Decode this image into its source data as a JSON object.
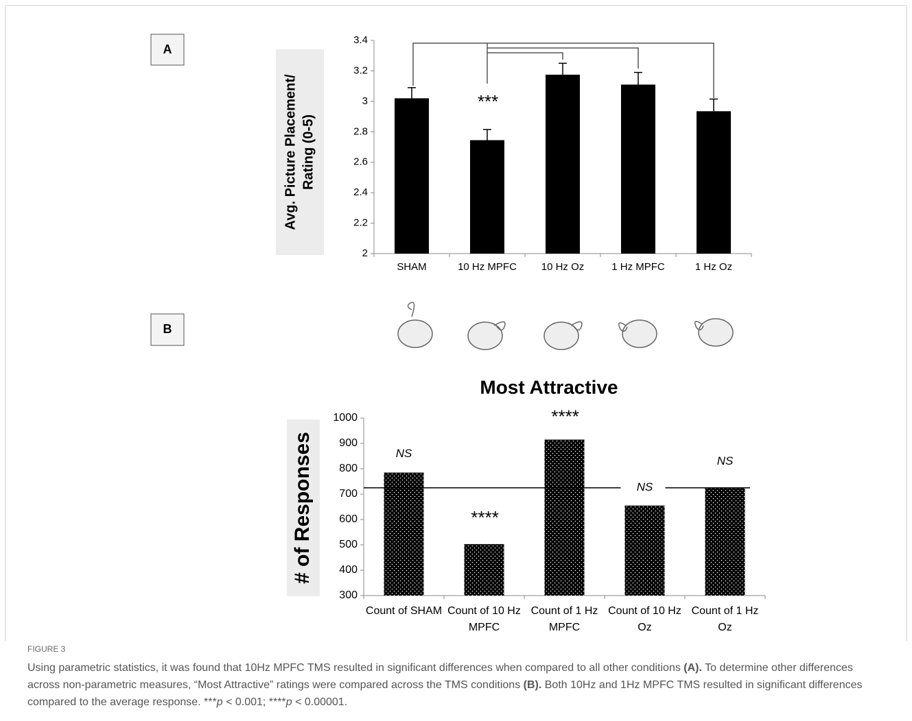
{
  "figure": {
    "panels": [
      "A",
      "B"
    ],
    "label": "FIGURE 3",
    "caption": [
      {
        "text": "Using parametric statistics, it was found that 10Hz MPFC TMS resulted in significant differences when compared to all other conditions "
      },
      {
        "text": "(A).",
        "bold": true
      },
      {
        "text": " To determine other differences across non-parametric measures, “Most Attractive” ratings were compared across the TMS conditions "
      },
      {
        "text": "(B).",
        "bold": true
      },
      {
        "text": " Both 10Hz and 1Hz MPFC TMS resulted in significant differences compared to the average response. ***"
      },
      {
        "text": "p",
        "italic": true
      },
      {
        "text": " < 0.001; ****"
      },
      {
        "text": "p",
        "italic": true
      },
      {
        "text": " < 0.00001."
      }
    ]
  },
  "chart_data": [
    {
      "type": "bar",
      "ylabel": [
        "Avg. Picture Placement/",
        "Rating (0-5)"
      ],
      "categories": [
        "SHAM",
        "10 Hz MPFC",
        "10 Hz Oz",
        "1 Hz MPFC",
        "1 Hz Oz"
      ],
      "values": [
        3.02,
        2.745,
        3.175,
        3.11,
        2.935
      ],
      "errors": [
        0.07,
        0.07,
        0.075,
        0.08,
        0.08
      ],
      "color": "#000000",
      "annotation": "***",
      "ylim": [
        2,
        3.4
      ],
      "yticks": [
        2,
        2.2,
        2.4,
        2.6,
        2.8,
        3,
        3.2,
        3.4
      ]
    },
    {
      "type": "bar",
      "title": "Most Attractive",
      "ylabel": "# of Responses",
      "categories": [
        [
          "Count of SHAM"
        ],
        [
          "Count of 10 Hz",
          "MPFC"
        ],
        [
          "Count of 1 Hz",
          "MPFC"
        ],
        [
          "Count of 10 Hz",
          "Oz"
        ],
        [
          "Count of 1 Hz",
          "Oz"
        ]
      ],
      "values": [
        785,
        503,
        915,
        655,
        725
      ],
      "annotations": [
        "NS",
        "****",
        "****",
        "NS",
        "NS"
      ],
      "color": "#000000",
      "reference_line": 725,
      "ylim": [
        300,
        1000
      ],
      "yticks": [
        300,
        400,
        500,
        600,
        700,
        800,
        900,
        1000
      ]
    }
  ]
}
